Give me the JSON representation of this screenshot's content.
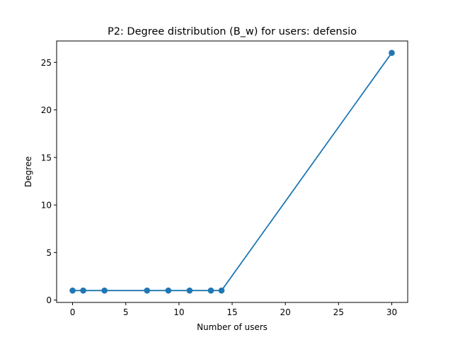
{
  "chart_data": {
    "type": "line",
    "title": "P2: Degree distribution (B_w) for users: defensio",
    "xlabel": "Number of users",
    "ylabel": "Degree",
    "xlim": [
      -1.5,
      31.5
    ],
    "ylim": [
      -0.25,
      27.25
    ],
    "xticks": [
      0,
      5,
      10,
      15,
      20,
      25,
      30
    ],
    "yticks": [
      0,
      5,
      10,
      15,
      20,
      25
    ],
    "grid": false,
    "series": [
      {
        "color": "#1f77b4",
        "marker": "circle",
        "x": [
          0,
          1,
          3,
          7,
          9,
          11,
          13,
          14,
          30
        ],
        "y": [
          1,
          1,
          1,
          1,
          1,
          1,
          1,
          1,
          26
        ]
      }
    ]
  }
}
